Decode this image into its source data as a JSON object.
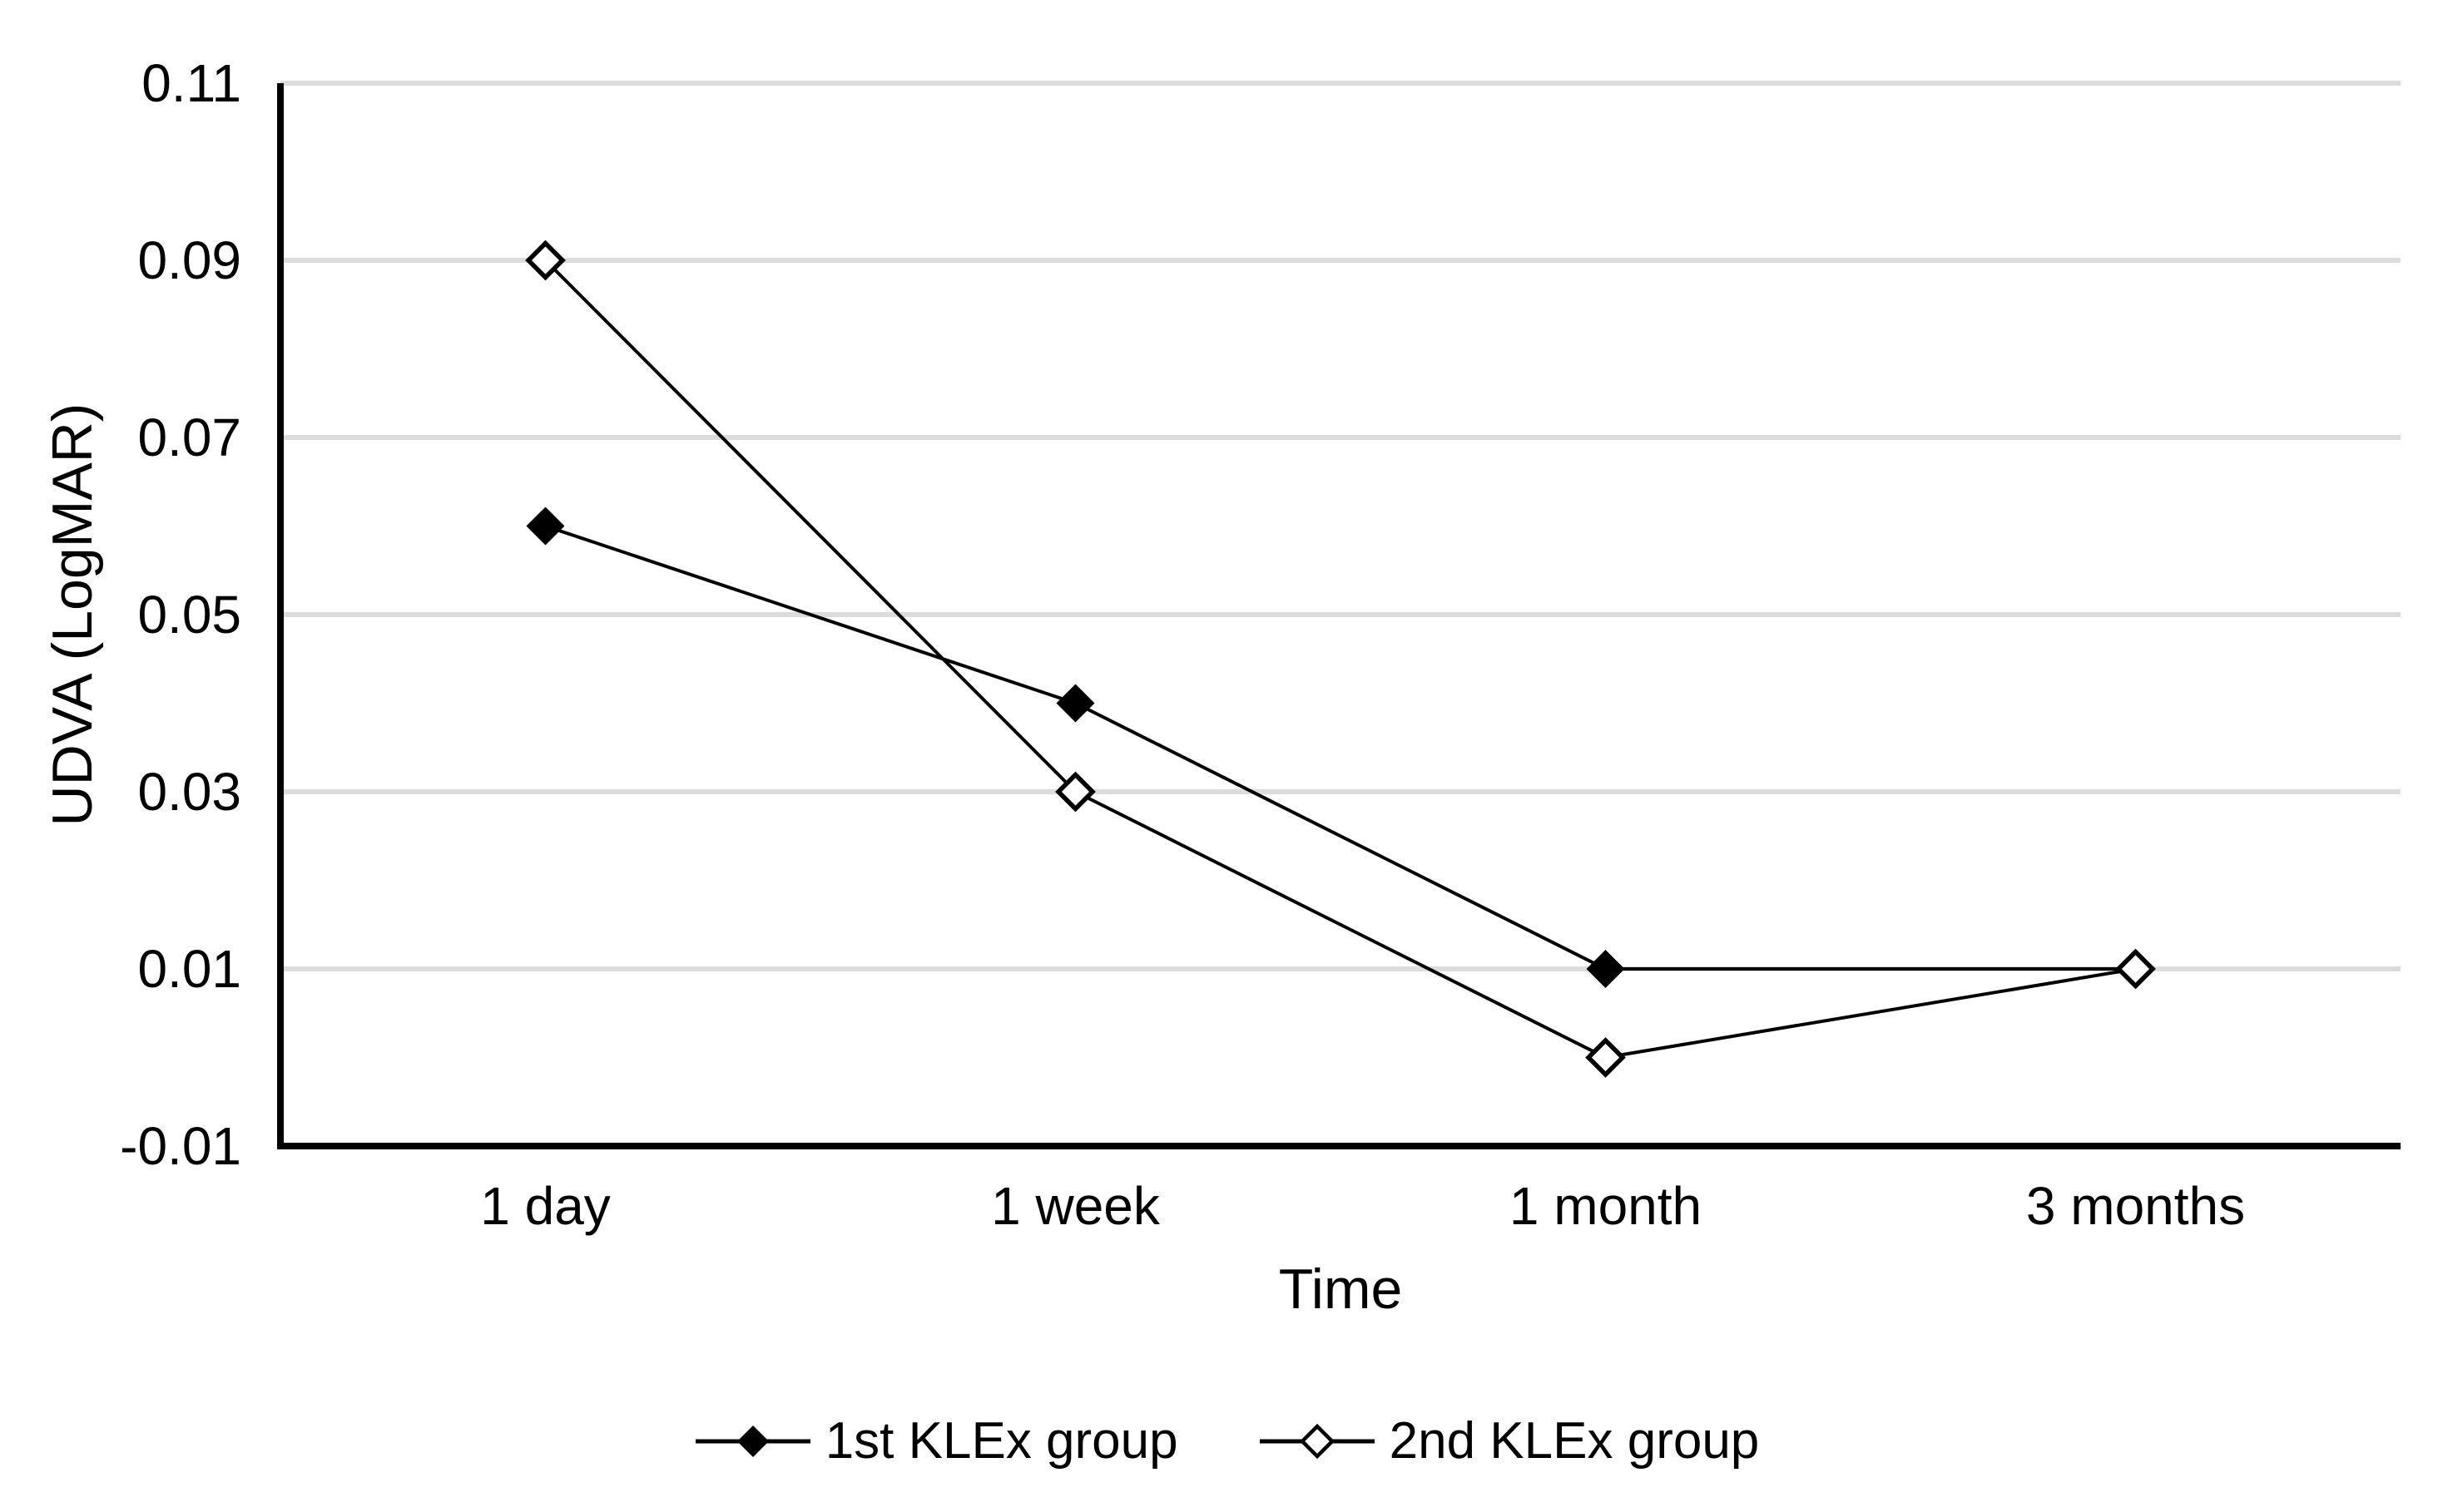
{
  "chart_data": {
    "type": "line",
    "title": "",
    "xlabel": "Time",
    "ylabel": "UDVA (LogMAR)",
    "categories": [
      "1 day",
      "1 week",
      "1 month",
      "3 months"
    ],
    "series": [
      {
        "name": "1st KLEx group",
        "marker": "filled-diamond",
        "color": "#000000",
        "values": [
          0.06,
          0.04,
          0.01,
          0.01
        ]
      },
      {
        "name": "2nd KLEx group",
        "marker": "open-diamond",
        "color": "#000000",
        "values": [
          0.09,
          0.03,
          0.0,
          0.01
        ]
      }
    ],
    "ylim": [
      -0.01,
      0.11
    ],
    "y_ticks": [
      0.11,
      0.09,
      0.07,
      0.05,
      0.03,
      0.01,
      -0.01
    ],
    "y_tick_labels": [
      "0.11",
      "0.09",
      "0.07",
      "0.05",
      "0.03",
      "0.01",
      "-0.01"
    ],
    "grid": "horizontal-only",
    "legend_position": "bottom-center",
    "colors": {
      "background": "#ffffff",
      "gridline": "#dcdcdc",
      "axis": "#000000",
      "text": "#000000"
    }
  }
}
